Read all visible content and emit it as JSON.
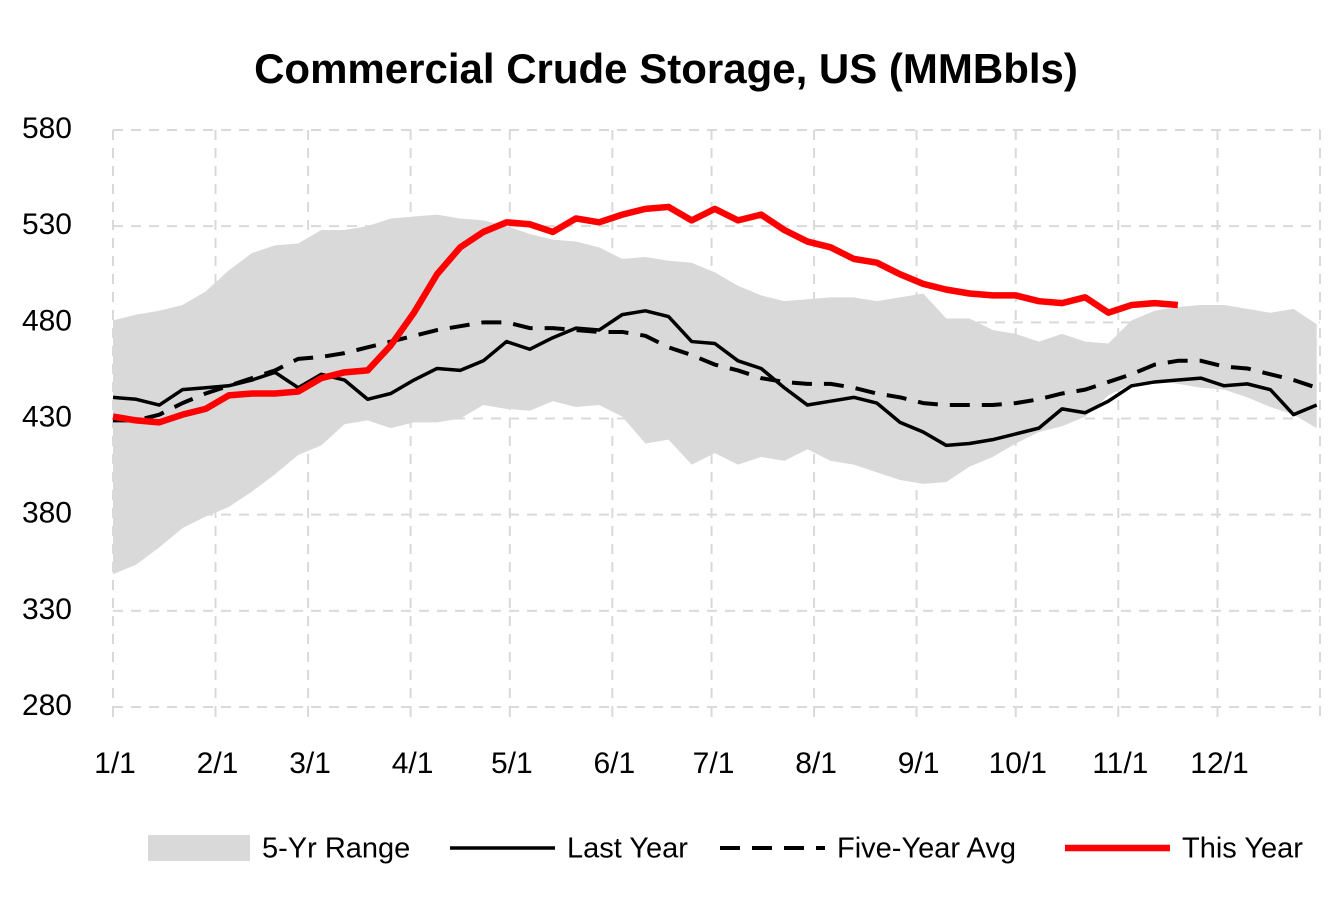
{
  "chart_data": {
    "type": "line",
    "title": "Commercial Crude Storage, US (MMBbls)",
    "x": [
      0,
      7,
      14,
      21,
      28,
      35,
      42,
      49,
      56,
      63,
      70,
      77,
      84,
      91,
      98,
      105,
      112,
      119,
      126,
      133,
      140,
      147,
      154,
      161,
      168,
      175,
      182,
      189,
      196,
      203,
      210,
      217,
      224,
      231,
      238,
      245,
      252,
      259,
      266,
      273,
      280,
      287,
      294,
      301,
      308,
      315,
      322,
      329,
      336,
      343,
      350,
      357,
      364
    ],
    "xlim": [
      0,
      365
    ],
    "xticks": [
      {
        "value": 0,
        "label": "1/1"
      },
      {
        "value": 31,
        "label": "2/1"
      },
      {
        "value": 59,
        "label": "3/1"
      },
      {
        "value": 90,
        "label": "4/1"
      },
      {
        "value": 120,
        "label": "5/1"
      },
      {
        "value": 151,
        "label": "6/1"
      },
      {
        "value": 181,
        "label": "7/1"
      },
      {
        "value": 212,
        "label": "8/1"
      },
      {
        "value": 243,
        "label": "9/1"
      },
      {
        "value": 273,
        "label": "10/1"
      },
      {
        "value": 304,
        "label": "11/1"
      },
      {
        "value": 334,
        "label": "12/1"
      }
    ],
    "ylim": [
      280,
      580
    ],
    "yticks": [
      280,
      330,
      380,
      430,
      480,
      530,
      580
    ],
    "grid": true,
    "legend": "bottom",
    "series": [
      {
        "name": "5-Yr Range",
        "type": "range",
        "color": "#d9d9d9",
        "high": [
          481,
          484,
          486,
          489,
          496,
          507,
          516,
          520,
          521,
          528,
          528,
          530,
          534,
          535,
          536,
          534,
          533,
          530,
          526,
          523,
          522,
          519,
          513,
          514,
          512,
          511,
          506,
          499,
          494,
          491,
          492,
          493,
          493,
          491,
          493,
          495,
          482,
          482,
          476,
          474,
          470,
          474,
          470,
          469,
          481,
          486,
          488,
          489,
          489,
          487,
          485,
          487,
          479
        ],
        "low": [
          349,
          354,
          363,
          373,
          379,
          384,
          392,
          401,
          411,
          416,
          427,
          429,
          425,
          428,
          428,
          430,
          437,
          435,
          434,
          439,
          436,
          437,
          431,
          417,
          419,
          406,
          412,
          406,
          410,
          408,
          414,
          408,
          406,
          402,
          398,
          396,
          397,
          405,
          410,
          417,
          423,
          426,
          431,
          442,
          448,
          450,
          448,
          446,
          445,
          441,
          436,
          432,
          425
        ]
      },
      {
        "name": "Last Year",
        "type": "line",
        "color": "#000000",
        "style": "solid",
        "values": [
          441,
          440,
          437,
          445,
          446,
          447,
          450,
          454,
          446,
          453,
          450,
          440,
          443,
          450,
          456,
          455,
          460,
          470,
          466,
          472,
          477,
          476,
          484,
          486,
          483,
          470,
          469,
          460,
          456,
          446,
          437,
          439,
          441,
          438,
          428,
          423,
          416,
          417,
          419,
          422,
          425,
          435,
          433,
          439,
          447,
          449,
          450,
          451,
          447,
          448,
          445,
          432,
          437
        ]
      },
      {
        "name": "Five-Year Avg",
        "type": "line",
        "color": "#000000",
        "style": "dashed",
        "values": [
          429,
          429,
          432,
          438,
          443,
          447,
          451,
          455,
          461,
          462,
          464,
          467,
          470,
          473,
          476,
          478,
          480,
          480,
          477,
          477,
          476,
          475,
          475,
          473,
          467,
          463,
          458,
          455,
          451,
          449,
          448,
          448,
          446,
          443,
          441,
          438,
          437,
          437,
          437,
          438,
          440,
          443,
          445,
          449,
          453,
          458,
          460,
          460,
          457,
          456,
          453,
          450,
          446
        ]
      },
      {
        "name": "This Year",
        "type": "line",
        "color": "#ff0000",
        "style": "thick",
        "values": [
          431,
          429,
          428,
          432,
          435,
          442,
          443,
          443,
          444,
          451,
          454,
          455,
          468,
          485,
          505,
          519,
          527,
          532,
          531,
          527,
          534,
          532,
          536,
          539,
          540,
          533,
          539,
          533,
          536,
          528,
          522,
          519,
          513,
          511,
          505,
          500,
          497,
          495,
          494,
          494,
          491,
          490,
          493,
          485,
          489,
          490,
          489,
          null,
          null,
          null,
          null,
          null,
          null
        ]
      }
    ]
  }
}
